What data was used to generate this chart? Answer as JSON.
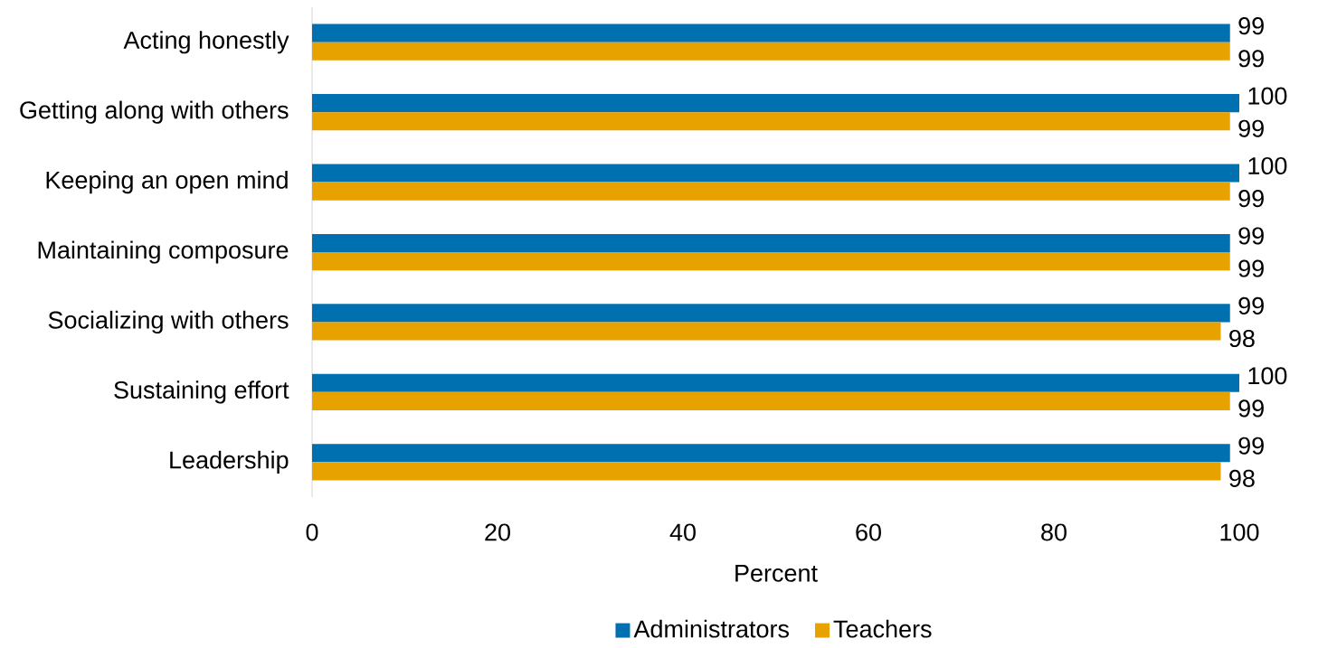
{
  "chart_data": {
    "type": "bar",
    "orientation": "horizontal",
    "xlabel": "Percent",
    "categories": [
      "Acting honestly",
      "Getting along with others",
      "Keeping an open mind",
      "Maintaining composure",
      "Socializing with others",
      "Sustaining effort",
      "Leadership"
    ],
    "series": [
      {
        "name": "Administrators",
        "color": "#0070b0",
        "values": [
          99,
          100,
          100,
          99,
          99,
          100,
          99
        ]
      },
      {
        "name": "Teachers",
        "color": "#e8a200",
        "values": [
          99,
          99,
          99,
          99,
          98,
          99,
          98
        ]
      }
    ],
    "xlim": [
      0,
      100
    ],
    "xticks": [
      0,
      20,
      40,
      60,
      80,
      100
    ],
    "data_labels": true,
    "legend": "bottom",
    "grid": false
  }
}
